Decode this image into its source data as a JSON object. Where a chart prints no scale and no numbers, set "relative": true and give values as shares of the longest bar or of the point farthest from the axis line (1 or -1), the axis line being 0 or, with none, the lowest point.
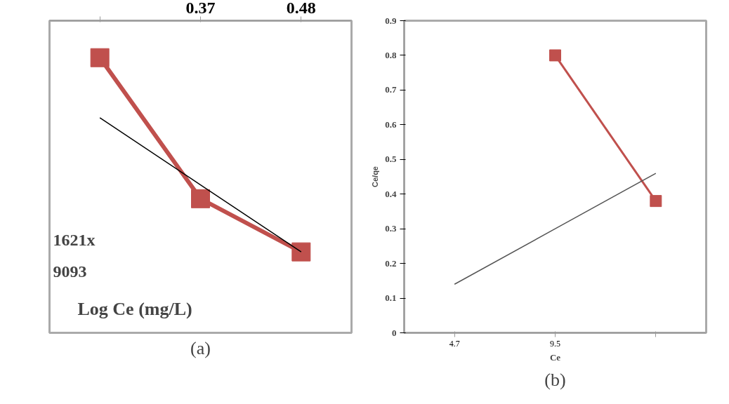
{
  "chart_data": [
    {
      "type": "line",
      "relative": true,
      "categories": [
        null,
        "0.37",
        "0.48"
      ],
      "xlabel": "Log Ce (mg/L)",
      "subtitle": "(a)",
      "tick_labels": "x",
      "annotations": [
        "1621x",
        "9093"
      ],
      "series": [
        {
          "color": "#c0504d",
          "marker": "square",
          "values": [
            -0.16,
            -0.77,
            -1.0
          ]
        },
        {
          "color": "#000000",
          "marker": "none",
          "values": [
            -0.42,
            -0.71,
            -1.0
          ]
        }
      ]
    },
    {
      "type": "line",
      "categories": [
        "4.7",
        "9.5",
        null
      ],
      "xlabel": "Ce",
      "ylabel": "Ce/qe",
      "subtitle": "(b)",
      "ylim": [
        0,
        0.9
      ],
      "yticks": [
        0,
        0.1,
        0.2,
        0.3,
        0.4,
        0.5,
        0.6,
        0.7,
        0.8,
        0.9
      ],
      "series": [
        {
          "color": "#c0504d",
          "marker": "square",
          "values": [
            null,
            0.8,
            0.38
          ]
        },
        {
          "color": "#555555",
          "marker": "none",
          "values": [
            0.14,
            0.3,
            0.46
          ]
        }
      ]
    }
  ]
}
